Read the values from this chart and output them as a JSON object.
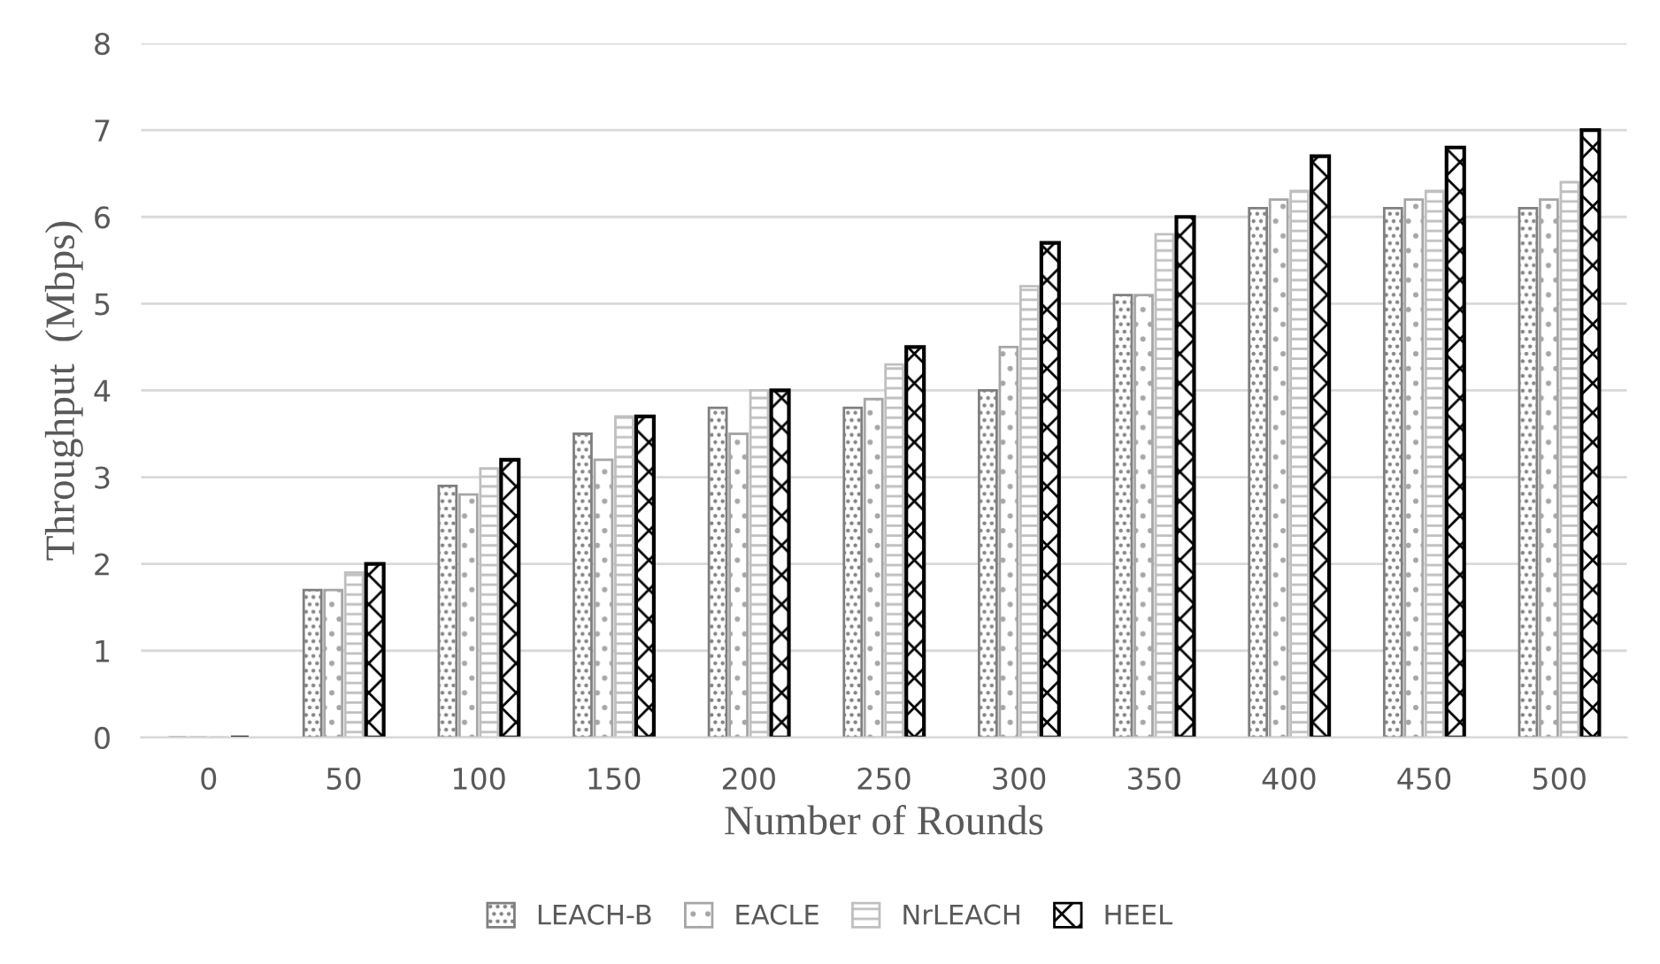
{
  "chart_data": {
    "type": "bar",
    "xlabel": "Number of Rounds",
    "ylabel": "Throughput  (Mbps)",
    "categories": [
      "0",
      "50",
      "100",
      "150",
      "200",
      "250",
      "300",
      "350",
      "400",
      "450",
      "500"
    ],
    "series": [
      {
        "name": "LEACH-B",
        "color": "#7f7f7f",
        "values": [
          0,
          1.7,
          2.9,
          3.5,
          3.8,
          3.8,
          4.0,
          5.1,
          6.1,
          6.1,
          6.1
        ]
      },
      {
        "name": "EACLE",
        "color": "#a6a6a6",
        "values": [
          0,
          1.7,
          2.8,
          3.2,
          3.5,
          3.9,
          4.5,
          5.1,
          6.2,
          6.2,
          6.2
        ]
      },
      {
        "name": "NrLEACH",
        "color": "#bfbfbf",
        "values": [
          0,
          1.9,
          3.1,
          3.7,
          4.0,
          4.3,
          5.2,
          5.8,
          6.3,
          6.3,
          6.4
        ]
      },
      {
        "name": "HEEL",
        "color": "#000000",
        "values": [
          0,
          2.0,
          3.2,
          3.7,
          4.0,
          4.5,
          5.7,
          6.0,
          6.7,
          6.8,
          7.0
        ]
      }
    ],
    "ylim": [
      0,
      8
    ],
    "yticks": [
      0,
      1,
      2,
      3,
      4,
      5,
      6,
      7,
      8
    ],
    "grid": "y",
    "legend": "bottom"
  }
}
